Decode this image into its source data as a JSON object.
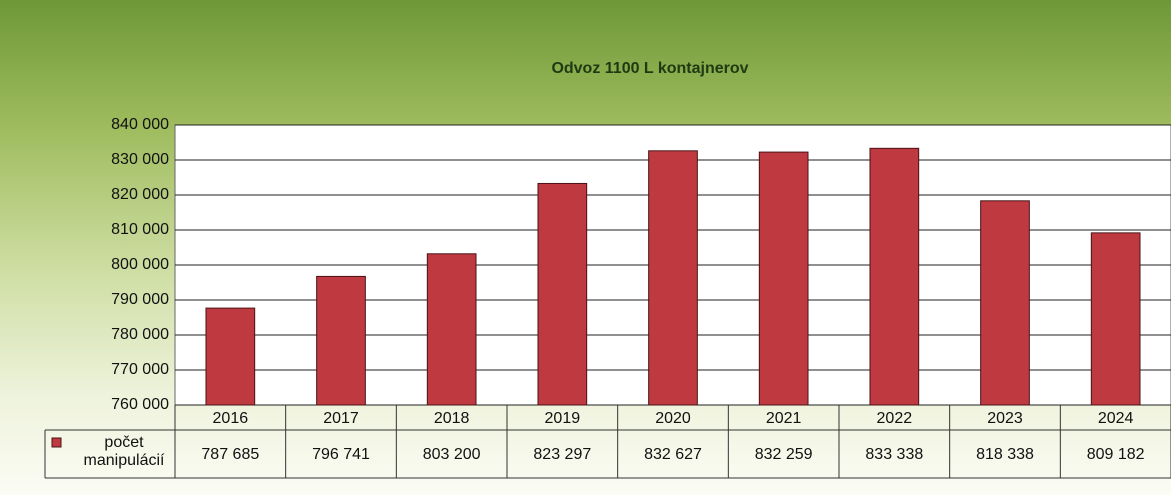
{
  "chart_data": {
    "type": "bar",
    "title": "Odvoz 1100 L kontajnerov",
    "categories": [
      "2016",
      "2017",
      "2018",
      "2019",
      "2020",
      "2021",
      "2022",
      "2023",
      "2024"
    ],
    "series": [
      {
        "name": "počet manipulácií",
        "color": "#bf3a40",
        "values": [
          787685,
          796741,
          803200,
          823297,
          832627,
          832259,
          833338,
          818338,
          809182
        ],
        "value_labels": [
          "787 685",
          "796 741",
          "803 200",
          "823 297",
          "832 627",
          "832 259",
          "833 338",
          "818 338",
          "809 182"
        ]
      }
    ],
    "ylim": [
      760000,
      840000
    ],
    "yticks": [
      {
        "value": 760000,
        "label": "760 000"
      },
      {
        "value": 770000,
        "label": "770 000"
      },
      {
        "value": 780000,
        "label": "780 000"
      },
      {
        "value": 790000,
        "label": "790 000"
      },
      {
        "value": 800000,
        "label": "800 000"
      },
      {
        "value": 810000,
        "label": "810 000"
      },
      {
        "value": 820000,
        "label": "820 000"
      },
      {
        "value": 830000,
        "label": "830 000"
      },
      {
        "value": 840000,
        "label": "840 000"
      }
    ],
    "grid": true
  }
}
